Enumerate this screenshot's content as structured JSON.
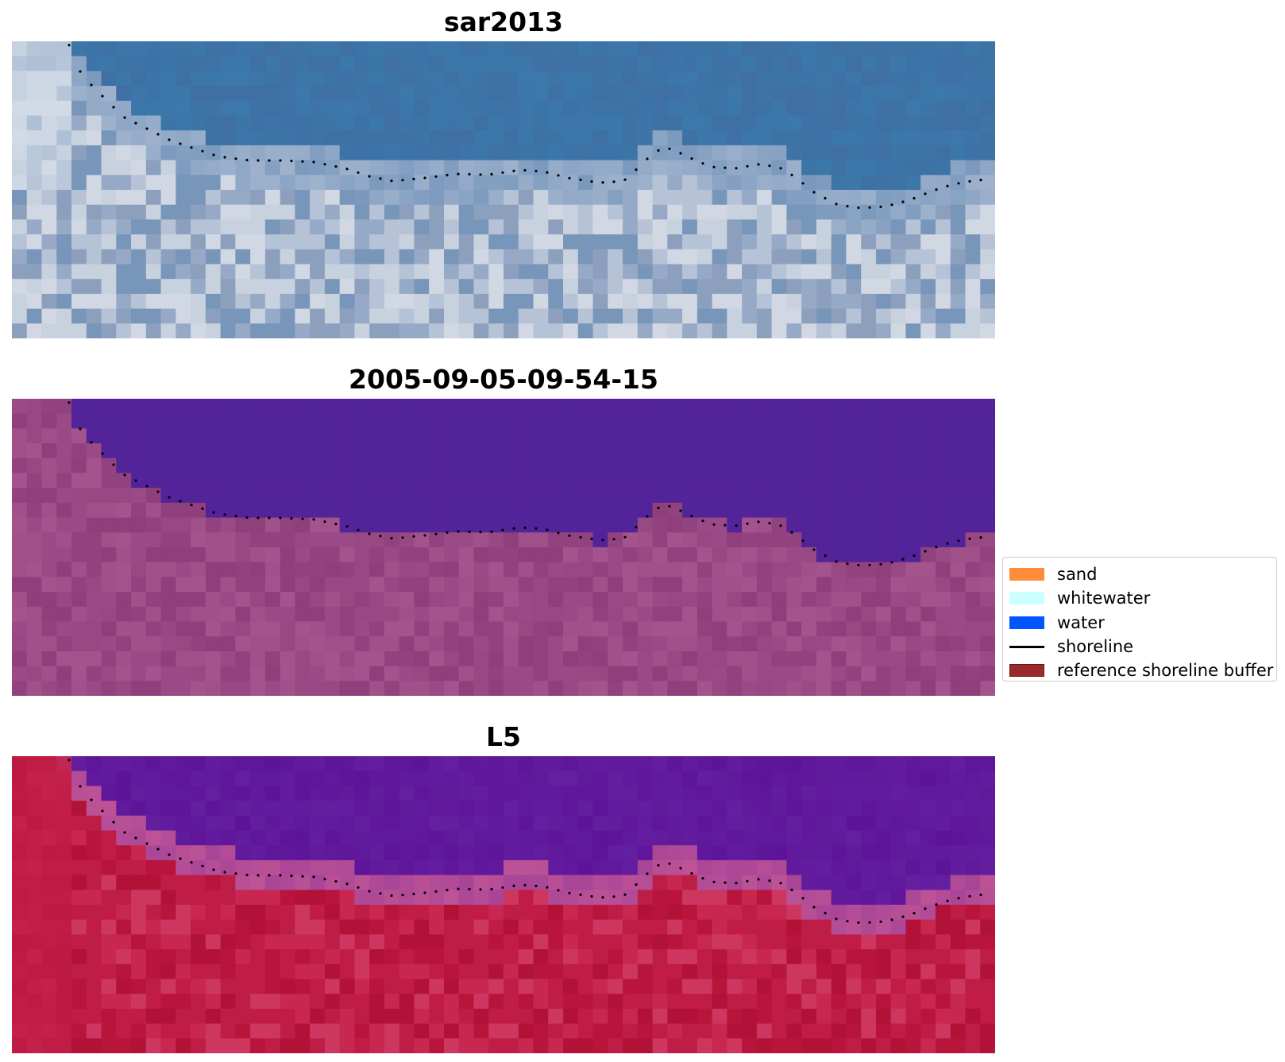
{
  "panels": [
    {
      "title": "sar2013",
      "style": "rgb"
    },
    {
      "title": "2005-09-05-09-54-15",
      "style": "classified"
    },
    {
      "title": "L5",
      "style": "index"
    }
  ],
  "legend": {
    "items": [
      {
        "label": "sand",
        "kind": "patch",
        "color": "#ff8c3a"
      },
      {
        "label": "whitewater",
        "kind": "patch",
        "color": "#ccffff"
      },
      {
        "label": "water",
        "kind": "patch",
        "color": "#0055ff"
      },
      {
        "label": "shoreline",
        "kind": "line",
        "color": "#000000"
      },
      {
        "label": "reference shoreline buffer",
        "kind": "patch",
        "color": "#9b2b2b"
      }
    ]
  },
  "colors": {
    "water_rgb": "#3f6fa3",
    "water_classified": "#53239a",
    "land_classified": "#9a4a86",
    "water_index": "#5e1499",
    "land_index": "#c01c45",
    "shoreline_dots": "#000000"
  }
}
